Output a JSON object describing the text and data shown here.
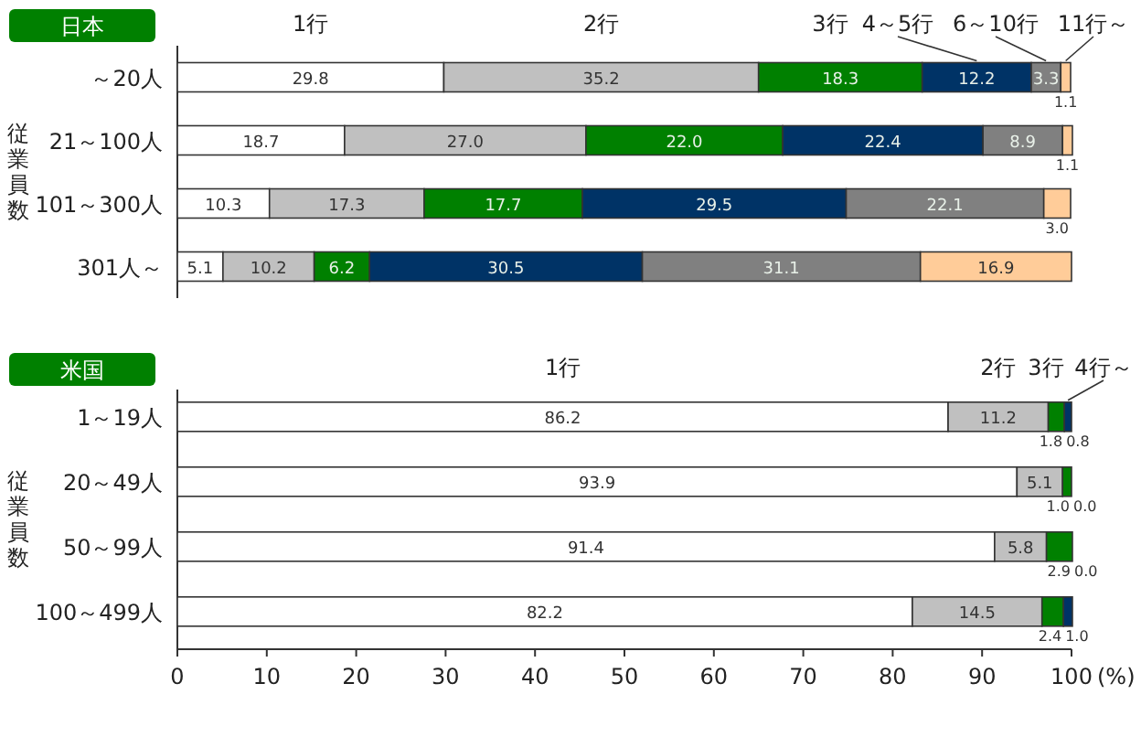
{
  "chart_data": [
    {
      "type": "bar",
      "orientation": "horizontal",
      "stacked": true,
      "title": "日本",
      "ylabel": "従業員数",
      "categories": [
        "～20人",
        "21～100人",
        "101～300人",
        "301人～"
      ],
      "xlim": [
        0,
        100
      ],
      "tick_labels": "y",
      "legend": "top",
      "series": [
        {
          "name": "1行",
          "color": "#ffffff",
          "values": [
            29.8,
            18.7,
            10.3,
            5.1
          ],
          "value_labels": [
            "29.8",
            "18.7",
            "10.3",
            "5.1"
          ]
        },
        {
          "name": "2行",
          "color": "#c0c0c0",
          "values": [
            35.2,
            27.0,
            17.3,
            10.2
          ],
          "value_labels": [
            "35.2",
            "27.0",
            "17.3",
            "10.2"
          ]
        },
        {
          "name": "3行",
          "color": "#008000",
          "values": [
            18.3,
            22.0,
            17.7,
            6.2
          ],
          "value_labels": [
            "18.3",
            "22.0",
            "17.7",
            "6.2"
          ]
        },
        {
          "name": "4～5行",
          "color": "#003366",
          "values": [
            12.2,
            22.4,
            29.5,
            30.5
          ],
          "value_labels": [
            "12.2",
            "22.4",
            "29.5",
            "30.5"
          ]
        },
        {
          "name": "6～10行",
          "color": "#808080",
          "values": [
            3.3,
            8.9,
            22.1,
            31.1
          ],
          "value_labels": [
            "3.3",
            "8.9",
            "22.1",
            "31.1"
          ]
        },
        {
          "name": "11行～",
          "color": "#ffcc99",
          "values": [
            1.1,
            1.1,
            3.0,
            16.9
          ],
          "value_labels": [
            "1.1",
            "1.1",
            "3.0",
            "16.9"
          ]
        }
      ]
    },
    {
      "type": "bar",
      "orientation": "horizontal",
      "stacked": true,
      "title": "米国",
      "ylabel": "従業員数",
      "xlabel": "(%)",
      "categories": [
        "1～19人",
        "20～49人",
        "50～99人",
        "100～499人"
      ],
      "xlim": [
        0,
        100
      ],
      "xticks": [
        0,
        10,
        20,
        30,
        40,
        50,
        60,
        70,
        80,
        90,
        100
      ],
      "legend": "top",
      "series": [
        {
          "name": "1行",
          "color": "#ffffff",
          "values": [
            86.2,
            93.9,
            91.4,
            82.2
          ],
          "value_labels": [
            "86.2",
            "93.9",
            "91.4",
            "82.2"
          ]
        },
        {
          "name": "2行",
          "color": "#c0c0c0",
          "values": [
            11.2,
            5.1,
            5.8,
            14.5
          ],
          "value_labels": [
            "11.2",
            "5.1",
            "5.8",
            "14.5"
          ]
        },
        {
          "name": "3行",
          "color": "#008000",
          "values": [
            1.8,
            1.0,
            2.9,
            2.4
          ],
          "value_labels": [
            "1.8",
            "1.0",
            "2.9",
            "2.4"
          ]
        },
        {
          "name": "4行～",
          "color": "#003366",
          "values": [
            0.8,
            0.0,
            0.0,
            1.0
          ],
          "value_labels": [
            "0.8",
            "0.0",
            "0.0",
            "1.0"
          ]
        }
      ]
    }
  ]
}
